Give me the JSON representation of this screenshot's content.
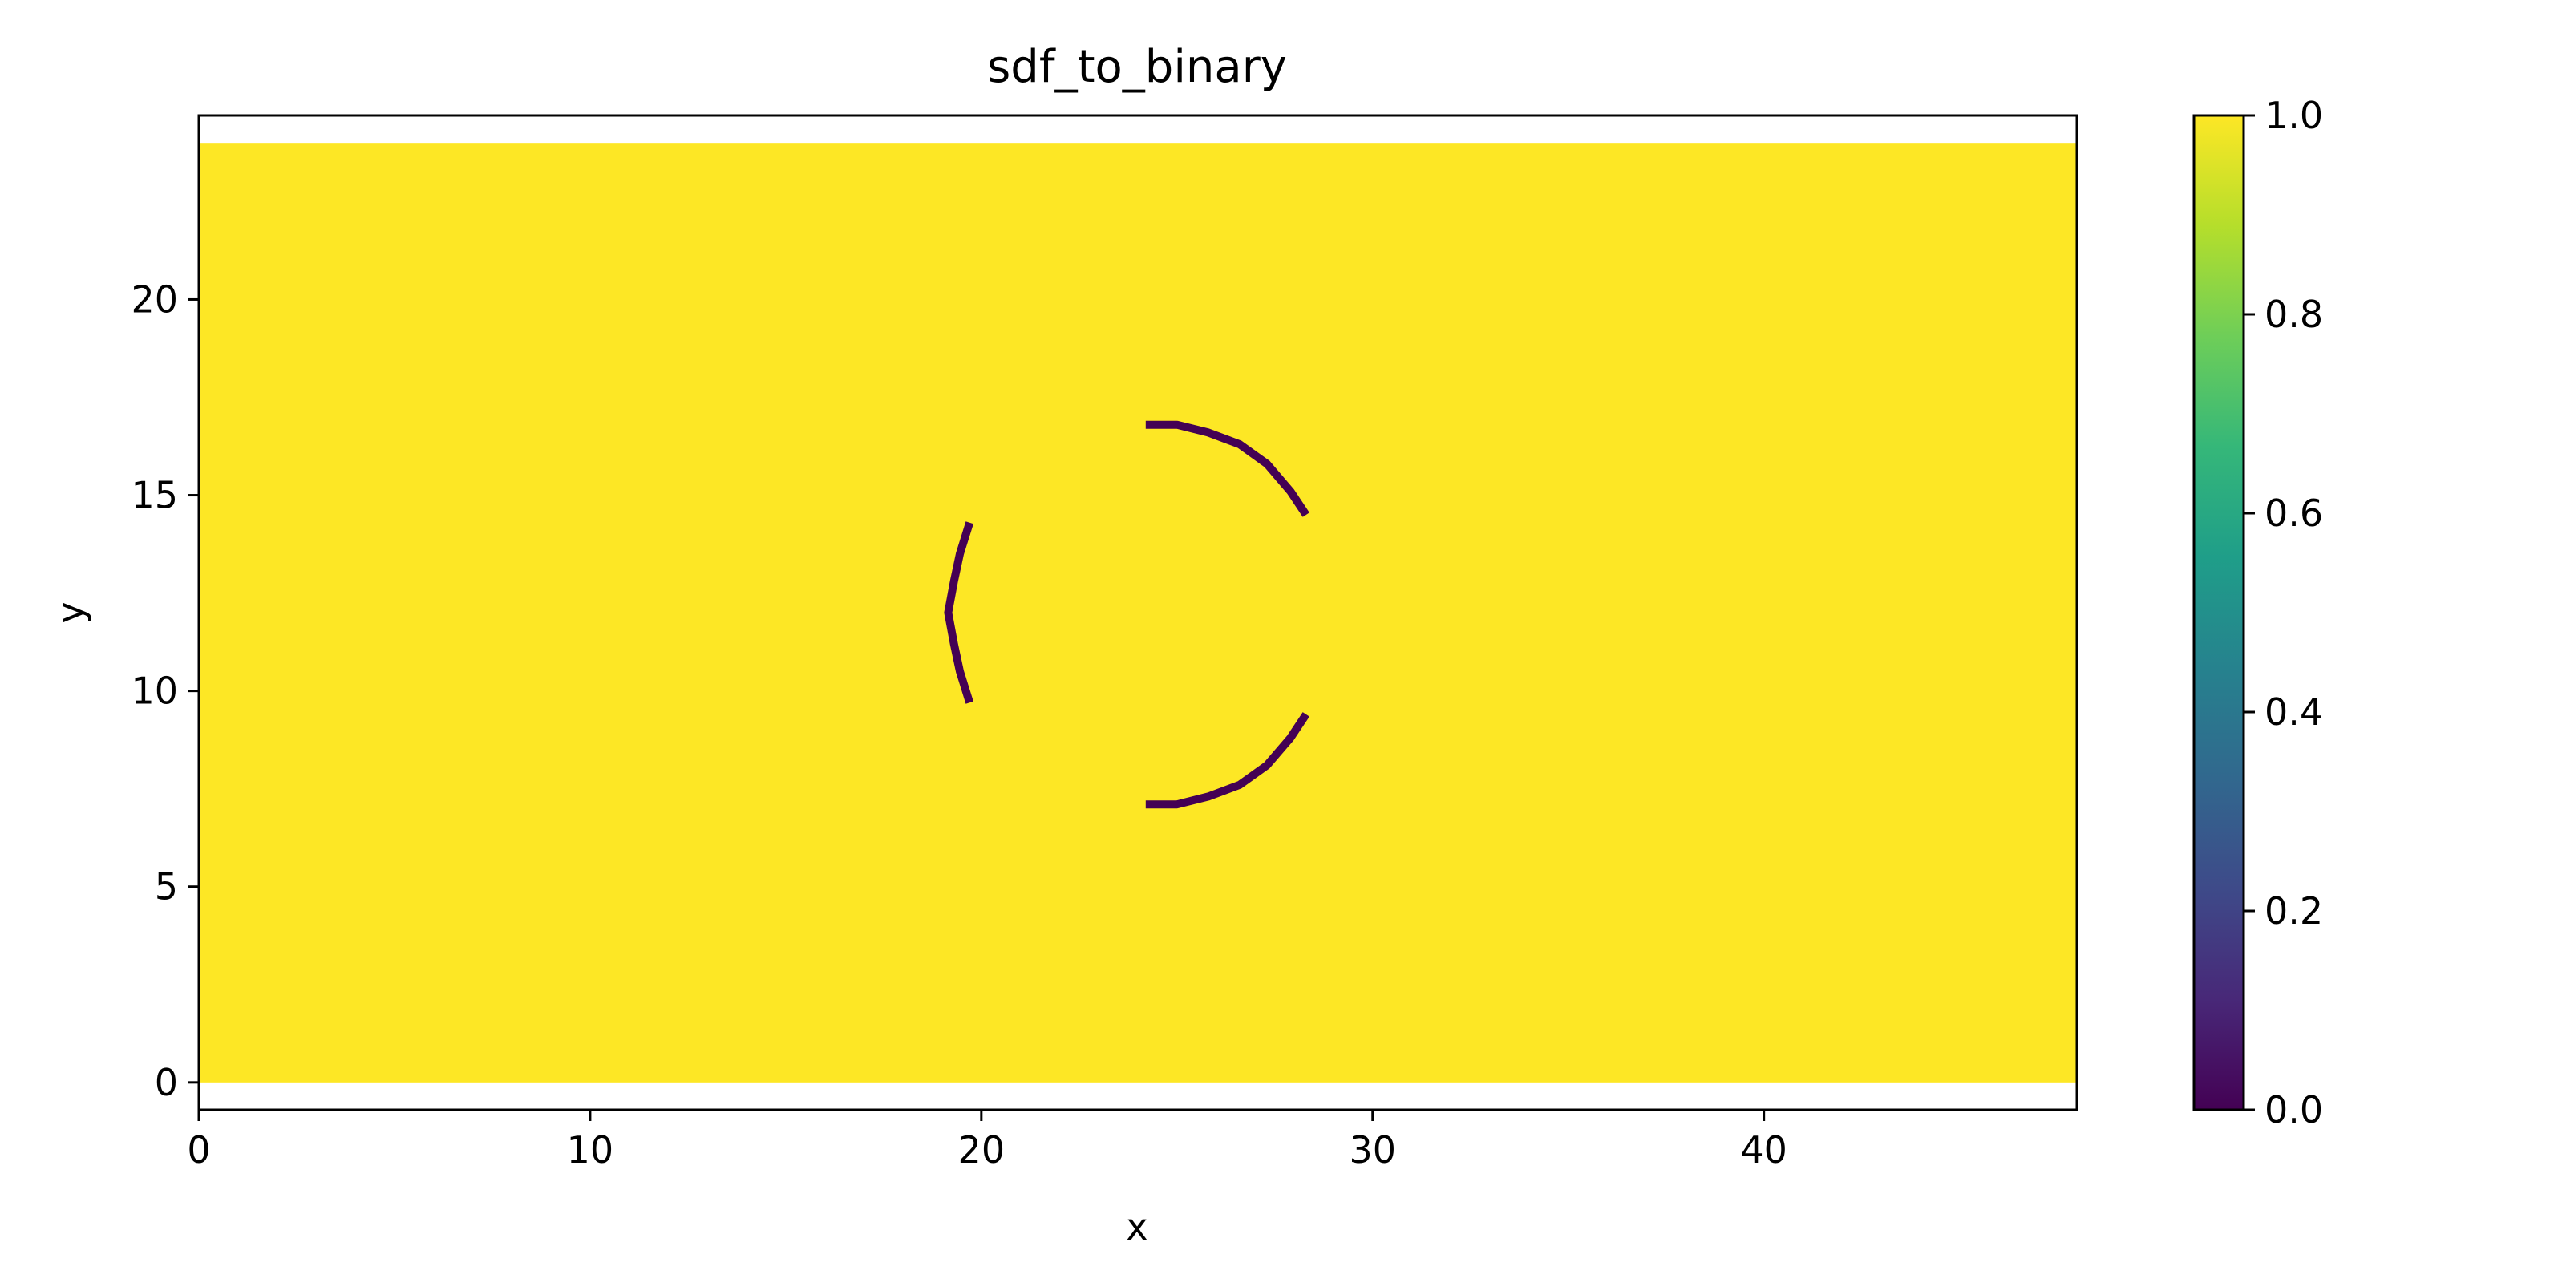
{
  "chart_data": {
    "type": "heatmap",
    "title": "sdf_to_binary",
    "xlabel": "x",
    "ylabel": "y",
    "xlim": [
      0,
      48
    ],
    "ylim": [
      -0.7,
      24.7
    ],
    "image_extent": {
      "x": [
        0,
        48
      ],
      "y": [
        0,
        24
      ]
    },
    "background_value": 1.0,
    "xticks": [
      0,
      10,
      20,
      30,
      40
    ],
    "xtick_labels": [
      "0",
      "10",
      "20",
      "30",
      "40"
    ],
    "yticks": [
      0,
      5,
      10,
      15,
      20
    ],
    "ytick_labels": [
      "0",
      "5",
      "10",
      "15",
      "20"
    ],
    "colormap": "viridis",
    "colorbar": {
      "range": [
        0.0,
        1.0
      ],
      "ticks": [
        0.0,
        0.2,
        0.4,
        0.6,
        0.8,
        1.0
      ],
      "tick_labels": [
        "0.0",
        "0.2",
        "0.4",
        "0.6",
        "0.8",
        "1.0"
      ],
      "stops": [
        "#440154",
        "#482878",
        "#3e4a89",
        "#31688e",
        "#26828e",
        "#1f9e89",
        "#35b779",
        "#6ece58",
        "#b5de2b",
        "#fde725"
      ]
    },
    "low_value_arcs": [
      {
        "name": "left-arc",
        "value": 0.0,
        "points": [
          [
            19.7,
            14.3
          ],
          [
            19.45,
            13.5
          ],
          [
            19.3,
            12.8
          ],
          [
            19.15,
            12.0
          ],
          [
            19.3,
            11.2
          ],
          [
            19.45,
            10.5
          ],
          [
            19.7,
            9.7
          ]
        ]
      },
      {
        "name": "upper-right-arc",
        "value": 0.0,
        "points": [
          [
            24.2,
            16.8
          ],
          [
            25.0,
            16.8
          ],
          [
            25.8,
            16.6
          ],
          [
            26.6,
            16.3
          ],
          [
            27.3,
            15.8
          ],
          [
            27.9,
            15.1
          ],
          [
            28.3,
            14.5
          ]
        ]
      },
      {
        "name": "lower-right-arc",
        "value": 0.0,
        "points": [
          [
            24.2,
            7.1
          ],
          [
            25.0,
            7.1
          ],
          [
            25.8,
            7.3
          ],
          [
            26.6,
            7.6
          ],
          [
            27.3,
            8.1
          ],
          [
            27.9,
            8.8
          ],
          [
            28.3,
            9.4
          ]
        ]
      }
    ]
  }
}
